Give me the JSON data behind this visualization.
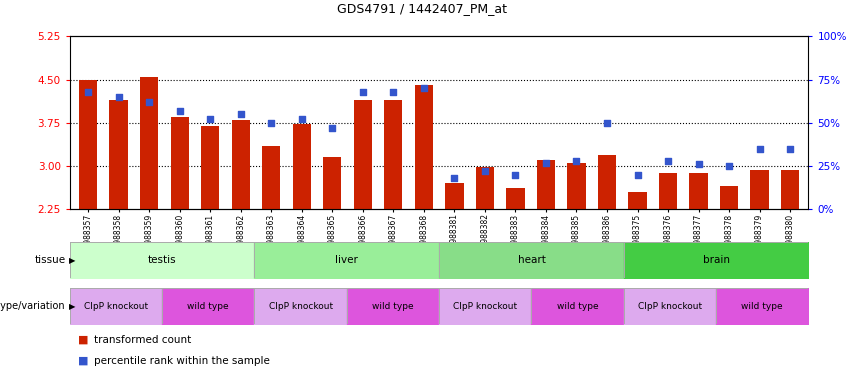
{
  "title": "GDS4791 / 1442407_PM_at",
  "samples": [
    "GSM988357",
    "GSM988358",
    "GSM988359",
    "GSM988360",
    "GSM988361",
    "GSM988362",
    "GSM988363",
    "GSM988364",
    "GSM988365",
    "GSM988366",
    "GSM988367",
    "GSM988368",
    "GSM988381",
    "GSM988382",
    "GSM988383",
    "GSM988384",
    "GSM988385",
    "GSM988386",
    "GSM988375",
    "GSM988376",
    "GSM988377",
    "GSM988378",
    "GSM988379",
    "GSM988380"
  ],
  "bar_values": [
    4.5,
    4.15,
    4.55,
    3.85,
    3.7,
    3.8,
    3.35,
    3.73,
    3.15,
    4.15,
    4.15,
    4.4,
    2.7,
    2.98,
    2.62,
    3.1,
    3.05,
    3.2,
    2.55,
    2.88,
    2.88,
    2.65,
    2.93,
    2.93
  ],
  "dot_values": [
    68,
    65,
    62,
    57,
    52,
    55,
    50,
    52,
    47,
    68,
    68,
    70,
    18,
    22,
    20,
    27,
    28,
    50,
    20,
    28,
    26,
    25,
    35,
    35
  ],
  "ylim_left": [
    2.25,
    5.25
  ],
  "ylim_right": [
    0,
    100
  ],
  "yticks_left": [
    2.25,
    3.0,
    3.75,
    4.5,
    5.25
  ],
  "yticks_right": [
    0,
    25,
    50,
    75,
    100
  ],
  "ytick_labels_right": [
    "0%",
    "25%",
    "50%",
    "75%",
    "100%"
  ],
  "hlines": [
    3.0,
    3.75,
    4.5
  ],
  "bar_color": "#cc2200",
  "dot_color": "#3355cc",
  "tissue_groups": [
    {
      "label": "testis",
      "start": 0,
      "end": 6,
      "color": "#ccffcc"
    },
    {
      "label": "liver",
      "start": 6,
      "end": 12,
      "color": "#99ee99"
    },
    {
      "label": "heart",
      "start": 12,
      "end": 18,
      "color": "#88dd88"
    },
    {
      "label": "brain",
      "start": 18,
      "end": 24,
      "color": "#44cc44"
    }
  ],
  "genotype_groups": [
    {
      "label": "ClpP knockout",
      "start": 0,
      "end": 3,
      "color": "#ddaaee"
    },
    {
      "label": "wild type",
      "start": 3,
      "end": 6,
      "color": "#dd55dd"
    },
    {
      "label": "ClpP knockout",
      "start": 6,
      "end": 9,
      "color": "#ddaaee"
    },
    {
      "label": "wild type",
      "start": 9,
      "end": 12,
      "color": "#dd55dd"
    },
    {
      "label": "ClpP knockout",
      "start": 12,
      "end": 15,
      "color": "#ddaaee"
    },
    {
      "label": "wild type",
      "start": 15,
      "end": 18,
      "color": "#dd55dd"
    },
    {
      "label": "ClpP knockout",
      "start": 18,
      "end": 21,
      "color": "#ddaaee"
    },
    {
      "label": "wild type",
      "start": 21,
      "end": 24,
      "color": "#dd55dd"
    }
  ],
  "legend_items": [
    {
      "label": "transformed count",
      "color": "#cc2200"
    },
    {
      "label": "percentile rank within the sample",
      "color": "#3355cc"
    }
  ],
  "tissue_label": "tissue",
  "genotype_label": "genotype/variation",
  "bg_color": "#f0f0f0"
}
